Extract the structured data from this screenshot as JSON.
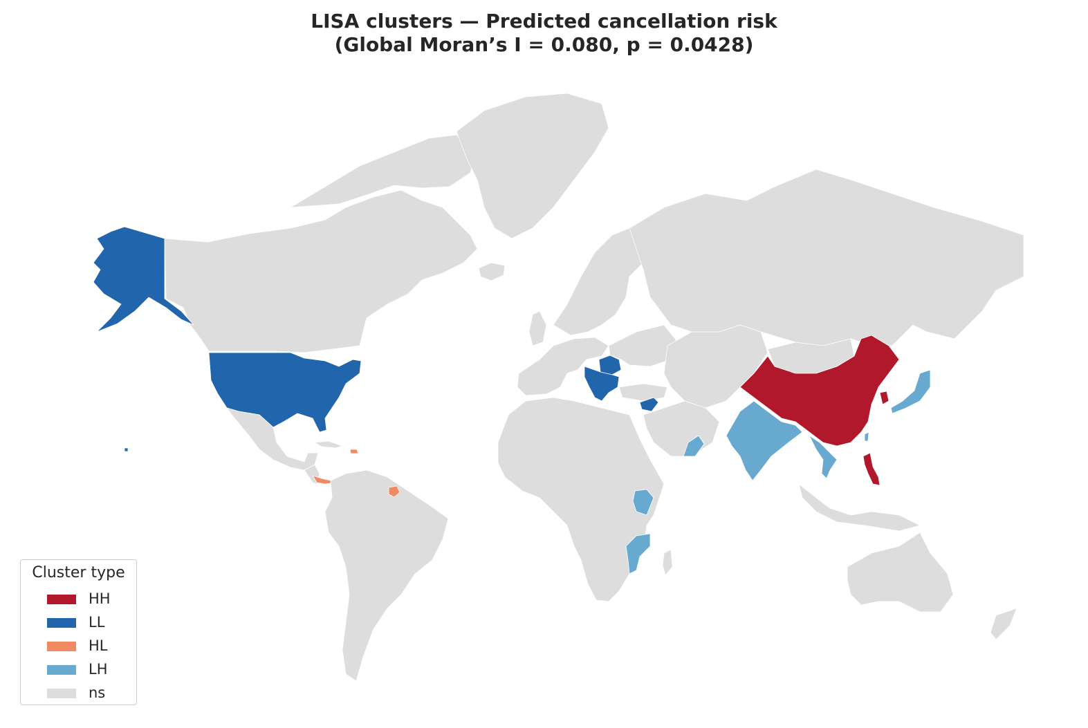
{
  "title": {
    "line1": "LISA clusters — Predicted cancellation risk",
    "line2": "(Global Moran’s I = 0.080, p = 0.0428)"
  },
  "colors": {
    "HH": "#b2182b",
    "LL": "#2166ac",
    "HL": "#ef8a62",
    "LH": "#67a9cf",
    "ns": "#dddddd"
  },
  "legend": {
    "title": "Cluster type",
    "items": [
      {
        "label": "HH",
        "key": "HH"
      },
      {
        "label": "LL",
        "key": "LL"
      },
      {
        "label": "HL",
        "key": "HL"
      },
      {
        "label": "LH",
        "key": "LH"
      },
      {
        "label": "ns",
        "key": "ns"
      }
    ]
  },
  "regions": {
    "HH": [
      "China",
      "South Korea",
      "Philippines"
    ],
    "LL": [
      "United States",
      "Alaska",
      "Hawaii",
      "Romania",
      "Serbia",
      "Bulgaria",
      "North Macedonia",
      "Albania",
      "Bosnia and Herzegovina",
      "Montenegro",
      "Greece",
      "Syria"
    ],
    "HL": [
      "Dominican Republic",
      "Panama",
      "Suriname"
    ],
    "LH": [
      "Japan",
      "India",
      "Nepal",
      "Bangladesh",
      "Myanmar",
      "Vietnam",
      "Oman",
      "Kenya",
      "Mozambique",
      "Malawi",
      "Taiwan"
    ]
  }
}
